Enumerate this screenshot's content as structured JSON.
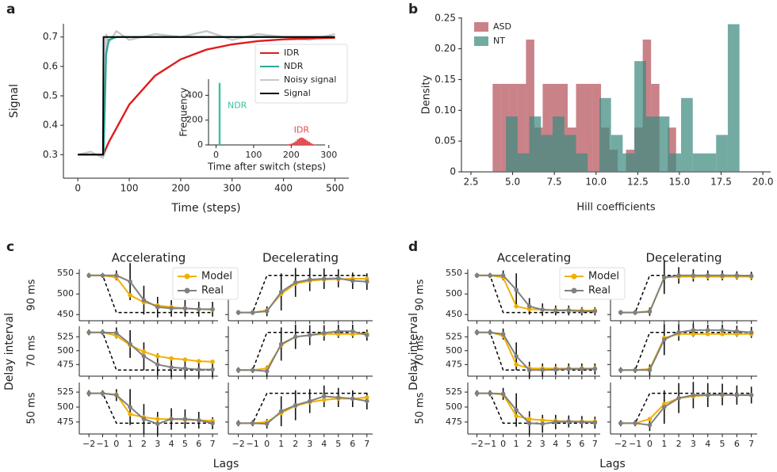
{
  "chart_data": [
    {
      "type": "line",
      "panel": "a",
      "xlabel": "Time (steps)",
      "ylabel": "Signal",
      "x": [
        0,
        25,
        49,
        50,
        55,
        60,
        75,
        100,
        150,
        200,
        250,
        300,
        350,
        400,
        450,
        500
      ],
      "series": [
        {
          "name": "IDR",
          "color": "#e01b1b",
          "values": [
            0.3,
            0.3,
            0.3,
            0.3,
            0.322,
            0.342,
            0.39,
            0.47,
            0.568,
            0.624,
            0.657,
            0.675,
            0.686,
            0.692,
            0.695,
            0.697
          ]
        },
        {
          "name": "NDR",
          "color": "#2aa89a",
          "values": [
            0.3,
            0.3,
            0.3,
            0.3,
            0.64,
            0.69,
            0.7,
            0.7,
            0.7,
            0.7,
            0.7,
            0.7,
            0.7,
            0.7,
            0.7,
            0.7
          ]
        },
        {
          "name": "Noisy signal",
          "color": "#c8c8c8",
          "values": [
            0.3,
            0.31,
            0.29,
            0.3,
            0.71,
            0.68,
            0.72,
            0.69,
            0.71,
            0.7,
            0.72,
            0.69,
            0.71,
            0.7,
            0.69,
            0.71
          ]
        },
        {
          "name": "Signal",
          "color": "#000000",
          "values": [
            0.3,
            0.3,
            0.3,
            0.7,
            0.7,
            0.7,
            0.7,
            0.7,
            0.7,
            0.7,
            0.7,
            0.7,
            0.7,
            0.7,
            0.7,
            0.7
          ]
        }
      ],
      "xlim": [
        -28,
        527
      ],
      "ylim": [
        0.22,
        0.745
      ],
      "xticks": [
        0,
        100,
        200,
        300,
        400,
        500
      ],
      "yticks": [
        0.3,
        0.4,
        0.5,
        0.6,
        0.7
      ],
      "legend": "lower right"
    },
    {
      "type": "histogram",
      "xlabel": "Time after switch (steps)",
      "ylabel": "Frequency",
      "series": [
        {
          "name": "NDR",
          "color": "#3cc0a0",
          "bins": [
            7,
            12
          ],
          "values": [
            500
          ]
        },
        {
          "name": "IDR",
          "color": "#e8474a",
          "bins": [
            190,
            195,
            200,
            205,
            210,
            215,
            220,
            225,
            230,
            235,
            240,
            245,
            250,
            255,
            260,
            265
          ],
          "values": [
            5,
            8,
            12,
            20,
            30,
            45,
            55,
            60,
            55,
            45,
            35,
            25,
            15,
            8,
            4
          ]
        }
      ],
      "xlim": [
        -20,
        290
      ],
      "ylim": [
        0,
        530
      ],
      "xticks": [
        0,
        100,
        200,
        300
      ],
      "yticks": [
        0,
        200,
        400
      ]
    },
    {
      "type": "histogram",
      "panel": "b",
      "xlabel": "Hill coefficients",
      "ylabel": "Density",
      "series": [
        {
          "name": "ASD",
          "color": "#b5525c",
          "bins": [
            3.8,
            4.3,
            4.8,
            5.3,
            5.8,
            6.3,
            6.8,
            7.3,
            7.8,
            8.3,
            8.8,
            9.3,
            9.8,
            10.3,
            10.8,
            11.3,
            11.8,
            12.3,
            12.8,
            13.3,
            13.8,
            14.3,
            14.8
          ],
          "values": [
            0.143,
            0.143,
            0.143,
            0.143,
            0.215,
            0.072,
            0.143,
            0.143,
            0.143,
            0.072,
            0.143,
            0.143,
            0.143,
            0.072,
            0.036,
            0,
            0.036,
            0.072,
            0.215,
            0.143,
            0,
            0.072
          ]
        },
        {
          "name": "NT",
          "color": "#3d8a80",
          "bins": [
            4.6,
            5.3,
            6.0,
            6.7,
            7.4,
            8.1,
            8.8,
            9.5,
            10.2,
            10.9,
            11.6,
            12.3,
            13.0,
            13.7,
            14.4,
            15.1,
            15.8,
            16.5,
            17.2,
            17.9,
            18.6
          ],
          "values": [
            0.09,
            0.03,
            0.09,
            0.06,
            0.09,
            0.06,
            0.03,
            0,
            0.12,
            0.06,
            0.03,
            0.18,
            0.09,
            0.09,
            0.03,
            0.12,
            0.03,
            0.03,
            0.06,
            0.24
          ]
        }
      ],
      "xlim": [
        1.93,
        20.47
      ],
      "ylim": [
        0,
        0.251
      ],
      "xticks": [
        2.5,
        {
          "value": 5,
          "label": "5.0"
        },
        7.5,
        {
          "value": 10,
          "label": "10.0"
        },
        12.5,
        {
          "value": 15,
          "label": "15.0"
        },
        17.5,
        {
          "value": 20,
          "label": "20.0"
        }
      ],
      "yticks": [
        0,
        0.05,
        {
          "value": 0.1,
          "label": "0.10"
        },
        0.15,
        {
          "value": 0.2,
          "label": "0.20"
        },
        0.25
      ],
      "legend": "upper left"
    },
    {
      "type": "line",
      "panel": "c",
      "xlabel": "Lags",
      "ylabel": "Delay interval",
      "legend": "upper center",
      "columns": [
        "Accelerating",
        "Decelerating"
      ],
      "rows": [
        {
          "label": "90 ms",
          "ylim": [
            435,
            560
          ],
          "yticks": [
            450,
            500,
            550
          ]
        },
        {
          "label": "70 ms",
          "ylim": [
            454,
            544
          ],
          "yticks": [
            475,
            500,
            525
          ]
        },
        {
          "label": "50 ms",
          "ylim": [
            455,
            541
          ],
          "yticks": [
            475,
            500,
            525
          ]
        }
      ],
      "x": [
        -2,
        -1,
        0,
        1,
        2,
        3,
        4,
        5,
        6,
        7
      ],
      "xlim": [
        -2.7,
        7.4
      ],
      "xticks": [
        {
          "value": -2,
          "label": "−2"
        },
        {
          "value": -1,
          "label": "−1"
        },
        0,
        1,
        2,
        3,
        4,
        5,
        6,
        7
      ],
      "series": [
        {
          "name": "Model",
          "color": "#f0b000"
        },
        {
          "name": "Real",
          "color": "#808080"
        }
      ],
      "target_color": "#000000",
      "subplots": [
        {
          "target": [
            545,
            545,
            455,
            455,
            455,
            455,
            455,
            455,
            455,
            455
          ],
          "model": [
            545,
            545,
            540,
            497,
            480,
            472,
            468,
            465,
            463,
            462
          ],
          "real": [
            545,
            545,
            545,
            530,
            485,
            468,
            465,
            465,
            463,
            463
          ],
          "real_errors": [
            6,
            6,
            12,
            45,
            35,
            25,
            20,
            20,
            18,
            18
          ]
        },
        {
          "target": [
            455,
            455,
            545,
            545,
            545,
            545,
            545,
            545,
            545,
            545
          ],
          "model": [
            455,
            455,
            460,
            500,
            525,
            532,
            535,
            536,
            537,
            537
          ],
          "real": [
            455,
            455,
            458,
            505,
            528,
            535,
            537,
            538,
            532,
            530
          ],
          "real_errors": [
            6,
            6,
            12,
            45,
            35,
            28,
            25,
            22,
            20,
            20
          ]
        },
        {
          "target": [
            533,
            533,
            465,
            465,
            465,
            465,
            465,
            465,
            465,
            465
          ],
          "model": [
            533,
            533,
            527,
            510,
            498,
            490,
            486,
            484,
            481,
            480
          ],
          "real": [
            533,
            533,
            532,
            512,
            490,
            475,
            470,
            468,
            466,
            466
          ],
          "real_errors": [
            5,
            5,
            10,
            25,
            25,
            20,
            18,
            16,
            15,
            14
          ]
        },
        {
          "target": [
            465,
            465,
            533,
            533,
            533,
            533,
            533,
            533,
            533,
            533
          ],
          "model": [
            465,
            465,
            468,
            510,
            525,
            528,
            530,
            530,
            530,
            530
          ],
          "real": [
            465,
            465,
            463,
            512,
            525,
            528,
            532,
            535,
            535,
            528
          ],
          "real_errors": [
            5,
            5,
            10,
            30,
            22,
            18,
            14,
            12,
            12,
            10
          ]
        },
        {
          "target": [
            523,
            523,
            473,
            473,
            473,
            473,
            473,
            473,
            473,
            473
          ],
          "model": [
            523,
            523,
            521,
            488,
            483,
            480,
            480,
            479,
            478,
            477
          ],
          "real": [
            523,
            523,
            520,
            500,
            480,
            472,
            480,
            480,
            478,
            473
          ],
          "real_errors": [
            5,
            5,
            10,
            30,
            25,
            20,
            18,
            16,
            14,
            10
          ]
        },
        {
          "target": [
            473,
            473,
            523,
            523,
            523,
            523,
            523,
            523,
            523,
            523
          ],
          "model": [
            473,
            473,
            475,
            490,
            502,
            508,
            512,
            514,
            514,
            516
          ],
          "real": [
            473,
            473,
            472,
            493,
            503,
            510,
            518,
            516,
            514,
            510
          ],
          "real_errors": [
            5,
            5,
            8,
            25,
            25,
            20,
            18,
            16,
            14,
            14
          ]
        }
      ]
    },
    {
      "type": "line",
      "panel": "d",
      "xlabel": "Lags",
      "ylabel": "Delay interval",
      "legend": "upper center",
      "columns": [
        "Accelerating",
        "Decelerating"
      ],
      "rows": [
        {
          "label": "90 ms",
          "ylim": [
            435,
            560
          ],
          "yticks": [
            450,
            500,
            550
          ]
        },
        {
          "label": "70 ms",
          "ylim": [
            454,
            544
          ],
          "yticks": [
            475,
            500,
            525
          ]
        },
        {
          "label": "50 ms",
          "ylim": [
            455,
            541
          ],
          "yticks": [
            475,
            500,
            525
          ]
        }
      ],
      "x": [
        -2,
        -1,
        0,
        1,
        2,
        3,
        4,
        5,
        6,
        7
      ],
      "xlim": [
        -2.7,
        7.4
      ],
      "xticks": [
        {
          "value": -2,
          "label": "−2"
        },
        {
          "value": -1,
          "label": "−1"
        },
        0,
        1,
        2,
        3,
        4,
        5,
        6,
        7
      ],
      "series": [
        {
          "name": "Model",
          "color": "#f0b000"
        },
        {
          "name": "Real",
          "color": "#808080"
        }
      ],
      "target_color": "#000000",
      "subplots": [
        {
          "target": [
            545,
            545,
            455,
            455,
            455,
            455,
            455,
            455,
            455,
            455
          ],
          "model": [
            545,
            545,
            540,
            470,
            463,
            462,
            461,
            461,
            460,
            460
          ],
          "real": [
            545,
            545,
            545,
            510,
            470,
            462,
            460,
            460,
            458,
            458
          ],
          "real_errors": [
            6,
            6,
            12,
            40,
            20,
            15,
            12,
            12,
            10,
            10
          ]
        },
        {
          "target": [
            455,
            455,
            545,
            545,
            545,
            545,
            545,
            545,
            545,
            545
          ],
          "model": [
            455,
            455,
            458,
            540,
            542,
            542,
            542,
            542,
            542,
            542
          ],
          "real": [
            455,
            455,
            457,
            540,
            545,
            545,
            545,
            545,
            545,
            544
          ],
          "real_errors": [
            6,
            6,
            10,
            40,
            20,
            15,
            12,
            12,
            10,
            10
          ]
        },
        {
          "target": [
            533,
            533,
            465,
            465,
            465,
            465,
            465,
            465,
            465,
            465
          ],
          "model": [
            533,
            533,
            527,
            475,
            468,
            468,
            468,
            468,
            468,
            468
          ],
          "real": [
            533,
            533,
            530,
            490,
            465,
            465,
            466,
            467,
            467,
            467
          ],
          "real_errors": [
            5,
            5,
            10,
            25,
            15,
            12,
            10,
            10,
            10,
            10
          ]
        },
        {
          "target": [
            465,
            465,
            533,
            533,
            533,
            533,
            533,
            533,
            533,
            533
          ],
          "model": [
            465,
            465,
            467,
            523,
            530,
            530,
            530,
            530,
            530,
            530
          ],
          "real": [
            465,
            465,
            465,
            520,
            533,
            537,
            537,
            537,
            535,
            533
          ],
          "real_errors": [
            5,
            5,
            10,
            28,
            15,
            12,
            10,
            10,
            10,
            10
          ]
        },
        {
          "target": [
            523,
            523,
            473,
            473,
            473,
            473,
            473,
            473,
            473,
            473
          ],
          "model": [
            523,
            523,
            521,
            485,
            480,
            478,
            477,
            476,
            476,
            476
          ],
          "real": [
            523,
            523,
            522,
            495,
            473,
            472,
            475,
            476,
            475,
            474
          ],
          "real_errors": [
            5,
            5,
            10,
            28,
            20,
            15,
            12,
            10,
            10,
            10
          ]
        },
        {
          "target": [
            473,
            473,
            523,
            523,
            523,
            523,
            523,
            523,
            523,
            523
          ],
          "model": [
            473,
            473,
            480,
            505,
            515,
            518,
            520,
            520,
            520,
            520
          ],
          "real": [
            473,
            473,
            470,
            500,
            515,
            520,
            520,
            521,
            520,
            520
          ],
          "real_errors": [
            5,
            5,
            10,
            28,
            25,
            22,
            20,
            18,
            16,
            14
          ]
        }
      ]
    }
  ]
}
